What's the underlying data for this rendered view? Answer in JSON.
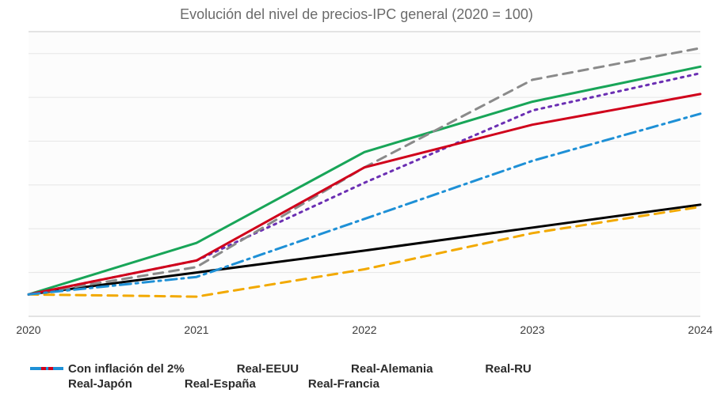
{
  "chart": {
    "type": "line",
    "title": "Evolución del nivel de precios-IPC  general (2020 = 100)",
    "title_fontsize": 18,
    "title_color": "#6b6b6b",
    "background_color": "#ffffff",
    "plot_bg": "#fcfcfc",
    "grid_color": "#e6e6e6",
    "border_color": "#c9c9c9",
    "xlabel_fontsize": 14,
    "line_width": 3,
    "x": {
      "categories": [
        "2020",
        "2021",
        "2022",
        "2023",
        "2024"
      ]
    },
    "y": {
      "min": 98,
      "max": 124,
      "gridlines": [
        98,
        102,
        106,
        110,
        114,
        118,
        122
      ]
    },
    "series": [
      {
        "name": "Con inflación del 2%",
        "color": "#000000",
        "dash": "solid",
        "values": [
          100,
          102.0,
          104.0,
          106.1,
          108.2
        ]
      },
      {
        "name": "Real-EEUU",
        "color": "#18a558",
        "dash": "solid",
        "values": [
          100,
          104.7,
          113.0,
          117.6,
          120.8
        ]
      },
      {
        "name": "Real-Alemania",
        "color": "#6b2fb3",
        "dash": "dotted",
        "values": [
          100,
          103.1,
          110.2,
          116.8,
          120.2
        ]
      },
      {
        "name": "Real-RU",
        "color": "#8a8a8a",
        "dash": "dashed",
        "values": [
          100,
          102.5,
          111.6,
          119.6,
          122.5
        ]
      },
      {
        "name": "Real-Japón",
        "color": "#f2a900",
        "dash": "dashed",
        "values": [
          100,
          99.8,
          102.3,
          105.6,
          108.0
        ]
      },
      {
        "name": "Real-España",
        "color": "#d0021b",
        "dash": "solid",
        "values": [
          100,
          103.1,
          111.6,
          115.5,
          118.3
        ]
      },
      {
        "name": "Real-Francia",
        "color": "#1e90d6",
        "dash": "dashdot",
        "values": [
          100,
          101.6,
          106.9,
          112.2,
          116.5
        ]
      }
    ],
    "legend": {
      "rows": [
        [
          "Con inflación del 2%",
          "Real-EEUU",
          "Real-Alemania",
          "Real-RU"
        ],
        [
          "Real-Japón",
          "Real-España",
          "Real-Francia"
        ]
      ],
      "fontsize": 15,
      "font_weight": "bold"
    }
  }
}
